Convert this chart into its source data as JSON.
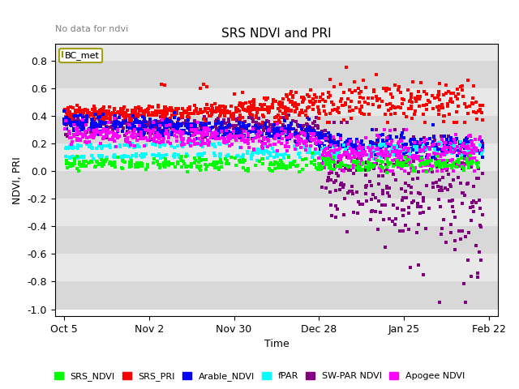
{
  "title": "SRS NDVI and PRI",
  "no_data_label": "No data for ndvi",
  "ylabel": "NDVI, PRI",
  "xlabel": "Time",
  "ylim": [
    -1.05,
    0.92
  ],
  "legend_label": "BC_met",
  "xtick_labels": [
    "Oct 5",
    "Nov 2",
    "Nov 30",
    "Dec 28",
    "Jan 25",
    "Feb 22"
  ],
  "xtick_positions": [
    0,
    28,
    56,
    84,
    112,
    140
  ],
  "series": {
    "SRS_NDVI": {
      "color": "#00ff00"
    },
    "SRS_PRI": {
      "color": "#ff0000"
    },
    "Arable_NDVI": {
      "color": "#0000ff"
    },
    "fPAR": {
      "color": "#00ffff"
    },
    "SW-PAR NDVI": {
      "color": "#800080"
    },
    "Apogee NDVI": {
      "color": "#ff00ff"
    }
  },
  "title_fontsize": 11,
  "axis_fontsize": 9,
  "band_colors": [
    "#d8d8d8",
    "#e8e8e8"
  ]
}
